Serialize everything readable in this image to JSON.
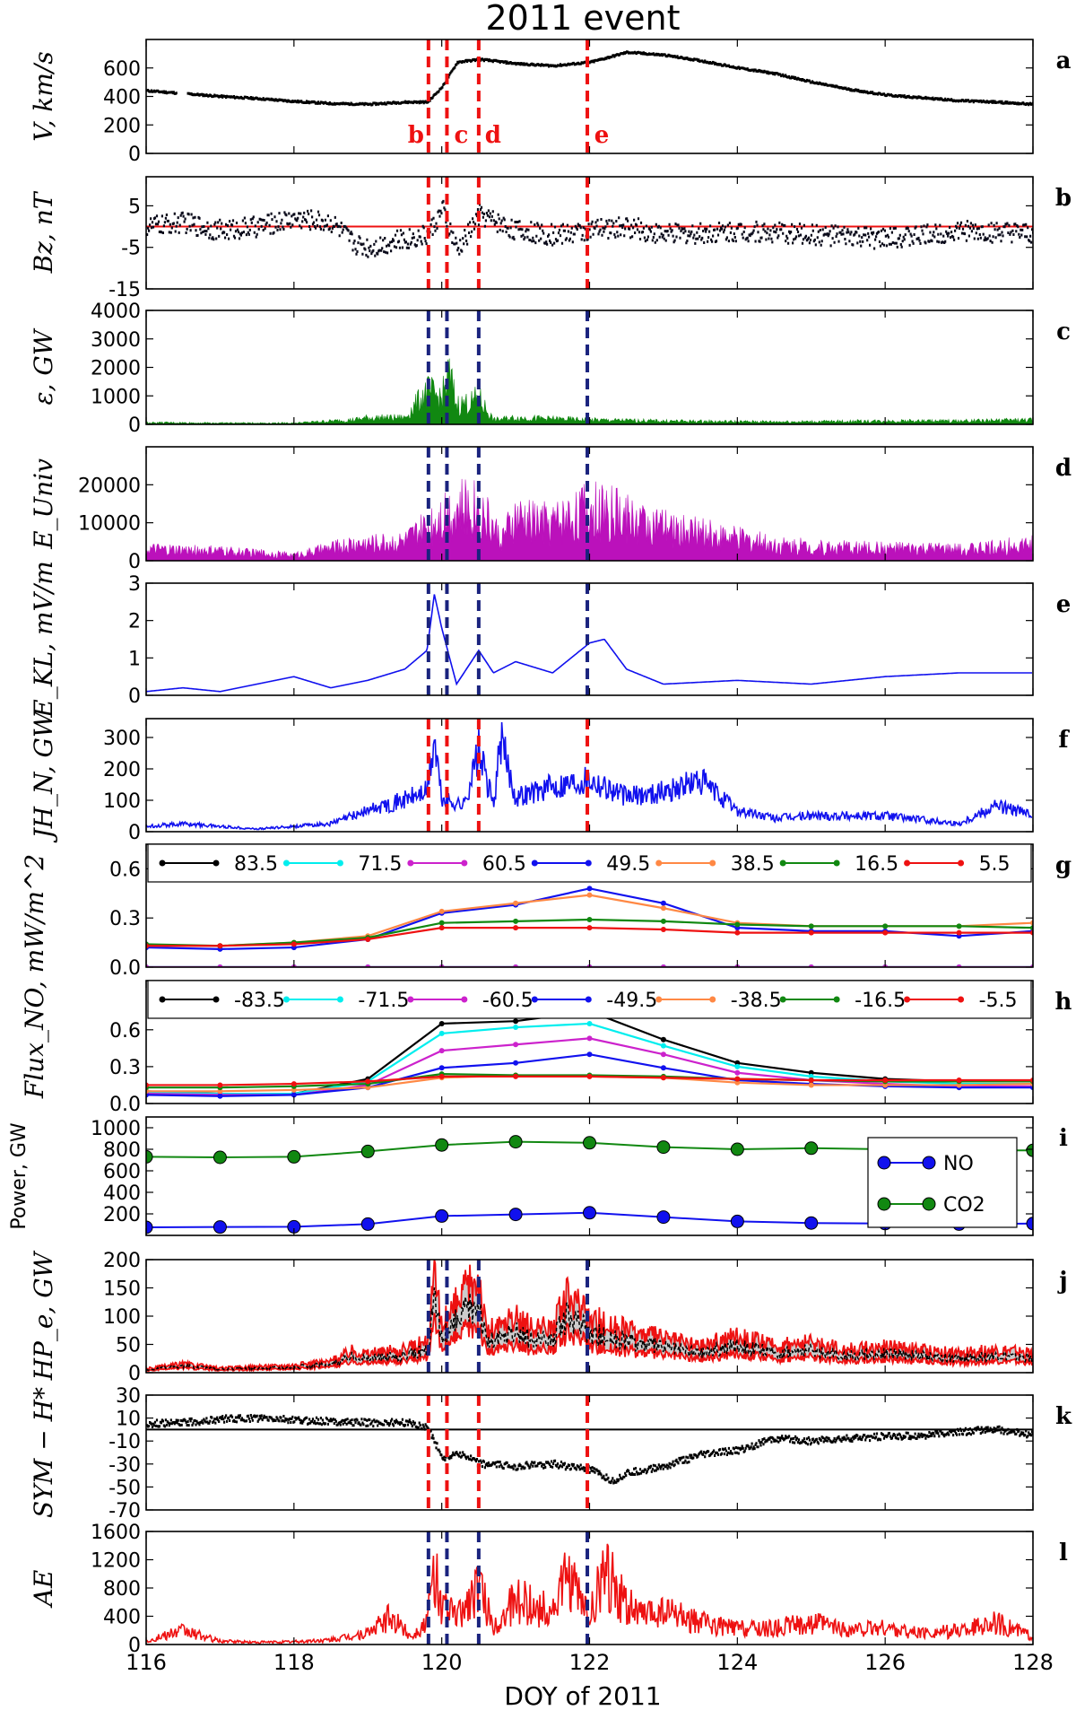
{
  "figure": {
    "title": "2011 event",
    "xlabel": "DOY of 2011",
    "x_range": [
      116,
      128
    ],
    "x_ticks": [
      116,
      118,
      120,
      122,
      124,
      126,
      128
    ],
    "event_lines": [
      119.82,
      120.07,
      120.5,
      121.97
    ],
    "event_labels": [
      "b",
      "c",
      "d",
      "e"
    ]
  },
  "chart_data": [
    {
      "type": "scatter",
      "panel": "a",
      "ylabel": "V, km/s",
      "ylim": [
        0,
        800
      ],
      "yticks": [
        0,
        200,
        400,
        600
      ],
      "color": "#000000",
      "vline_color": "#ee1111",
      "series": [
        {
          "name": "",
          "x": [
            116,
            116.5,
            117,
            117.5,
            118,
            118.5,
            119,
            119.5,
            119.8,
            120,
            120.2,
            120.5,
            121,
            121.5,
            122,
            122.5,
            123,
            123.5,
            124,
            124.5,
            125,
            125.5,
            126,
            126.5,
            127,
            127.5,
            128
          ],
          "y": [
            440,
            420,
            400,
            385,
            365,
            350,
            345,
            360,
            360,
            470,
            640,
            660,
            630,
            615,
            640,
            710,
            690,
            650,
            600,
            560,
            500,
            450,
            410,
            390,
            370,
            360,
            345
          ]
        }
      ]
    },
    {
      "type": "scatter",
      "panel": "b",
      "ylabel": "Bz, nT",
      "ylim": [
        -15,
        12
      ],
      "yticks": [
        -15,
        -5,
        5
      ],
      "ref_line": 0,
      "ref_color": "#ee1111",
      "color": "#0a0a1a",
      "vline_color": "#ee1111",
      "series": [
        {
          "name": "",
          "x": [
            116,
            116.5,
            117,
            117.5,
            118,
            118.5,
            118.8,
            119,
            119.5,
            119.8,
            120,
            120.2,
            120.5,
            121,
            121.5,
            122,
            122.5,
            123,
            124,
            125,
            126,
            127,
            128
          ],
          "y": [
            0,
            1,
            -1,
            0,
            2,
            1,
            -4,
            -5,
            -3,
            -2,
            4,
            -6,
            3,
            -1,
            -2,
            -1,
            0,
            -2,
            -1,
            -2,
            -3,
            -1,
            -2
          ]
        }
      ]
    },
    {
      "type": "area",
      "panel": "c",
      "ylabel": "ε, GW",
      "ylim": [
        0,
        4000
      ],
      "yticks": [
        0,
        1000,
        2000,
        3000,
        4000
      ],
      "color": "#118811",
      "vline_color": "#1a237e",
      "series": [
        {
          "name": "",
          "x": [
            116,
            117,
            118,
            118.8,
            119,
            119.5,
            119.8,
            120,
            120.1,
            120.2,
            120.4,
            120.5,
            120.7,
            121,
            122,
            123,
            124,
            125,
            126,
            127,
            128
          ],
          "y": [
            80,
            60,
            60,
            200,
            300,
            300,
            1500,
            1200,
            2300,
            900,
            1000,
            1200,
            200,
            300,
            200,
            150,
            120,
            120,
            150,
            150,
            200
          ]
        }
      ]
    },
    {
      "type": "area",
      "panel": "d",
      "ylabel": "E_Univ",
      "ylim": [
        0,
        30000
      ],
      "yticks": [
        0,
        10000,
        20000
      ],
      "color": "#bb11bb",
      "vline_color": "#1a237e",
      "series": [
        {
          "name": "",
          "x": [
            116,
            117,
            118,
            118.8,
            119.5,
            119.8,
            120,
            120.5,
            120.8,
            121,
            121.5,
            122,
            122.5,
            123,
            123.5,
            124,
            124.5,
            125,
            126,
            127,
            128
          ],
          "y": [
            4000,
            3500,
            2000,
            6000,
            7000,
            12000,
            18000,
            20000,
            8000,
            15000,
            14000,
            19000,
            16000,
            12000,
            10000,
            8000,
            6000,
            5000,
            4500,
            4000,
            6000
          ]
        }
      ]
    },
    {
      "type": "line",
      "panel": "e",
      "ylabel": "E_KL, mV/m",
      "ylim": [
        0,
        3
      ],
      "yticks": [
        0,
        1,
        2,
        3
      ],
      "color": "#1111ee",
      "vline_color": "#1a237e",
      "series": [
        {
          "name": "",
          "x": [
            116,
            116.5,
            117,
            117.5,
            118,
            118.5,
            119,
            119.5,
            119.8,
            119.9,
            120,
            120.2,
            120.5,
            120.7,
            121,
            121.5,
            122,
            122.2,
            122.5,
            123,
            124,
            125,
            126,
            127,
            128
          ],
          "y": [
            0.1,
            0.2,
            0.1,
            0.3,
            0.5,
            0.2,
            0.4,
            0.7,
            1.2,
            2.7,
            1.8,
            0.3,
            1.2,
            0.6,
            0.9,
            0.6,
            1.4,
            1.5,
            0.7,
            0.3,
            0.4,
            0.3,
            0.5,
            0.6,
            0.6
          ]
        }
      ]
    },
    {
      "type": "line",
      "panel": "f",
      "ylabel": "JH_N, GW",
      "ylim": [
        0,
        360
      ],
      "yticks": [
        0,
        100,
        200,
        300
      ],
      "color": "#1111ee",
      "vline_color": "#ee1111",
      "series": [
        {
          "name": "",
          "x": [
            116,
            116.5,
            117,
            117.5,
            118,
            118.5,
            119,
            119.5,
            119.8,
            119.9,
            120,
            120.3,
            120.5,
            120.7,
            120.8,
            121,
            121.5,
            122,
            122.5,
            123,
            123.5,
            124,
            124.5,
            125,
            126,
            127,
            127.5,
            128
          ],
          "y": [
            20,
            30,
            20,
            10,
            20,
            30,
            80,
            120,
            150,
            340,
            120,
            100,
            300,
            100,
            340,
            130,
            170,
            200,
            130,
            150,
            190,
            80,
            50,
            60,
            60,
            30,
            100,
            60
          ]
        }
      ]
    },
    {
      "type": "line",
      "panel": "g",
      "ylabel": "Flux_NO, mW/m^2",
      "ylim": [
        0,
        0.75
      ],
      "yticks": [
        0.0,
        0.3,
        0.6
      ],
      "x": [
        116,
        117,
        118,
        119,
        120,
        121,
        122,
        123,
        124,
        125,
        126,
        127,
        128
      ],
      "series": [
        {
          "name": "83.5",
          "color": "#000000",
          "values": [
            0,
            0,
            0,
            0,
            0,
            0,
            0,
            0,
            0,
            0,
            0,
            0,
            0
          ]
        },
        {
          "name": "71.5",
          "color": "#00eeee",
          "values": [
            0,
            0,
            0,
            0,
            0,
            0,
            0,
            0,
            0,
            0,
            0,
            0,
            0
          ]
        },
        {
          "name": "60.5",
          "color": "#cc22cc",
          "values": [
            0,
            0,
            0,
            0,
            0,
            0,
            0,
            0,
            0,
            0,
            0,
            0,
            0
          ]
        },
        {
          "name": "49.5",
          "color": "#1111ee",
          "values": [
            0.12,
            0.11,
            0.12,
            0.17,
            0.33,
            0.38,
            0.48,
            0.39,
            0.24,
            0.22,
            0.22,
            0.19,
            0.22
          ]
        },
        {
          "name": "38.5",
          "color": "#ff8844",
          "values": [
            0.13,
            0.13,
            0.15,
            0.19,
            0.34,
            0.39,
            0.44,
            0.36,
            0.27,
            0.25,
            0.25,
            0.25,
            0.27
          ]
        },
        {
          "name": "16.5",
          "color": "#118811",
          "values": [
            0.14,
            0.13,
            0.15,
            0.18,
            0.27,
            0.28,
            0.29,
            0.28,
            0.26,
            0.25,
            0.25,
            0.25,
            0.24
          ]
        },
        {
          "name": "5.5",
          "color": "#ee1111",
          "values": [
            0.13,
            0.13,
            0.14,
            0.17,
            0.24,
            0.24,
            0.24,
            0.23,
            0.21,
            0.21,
            0.21,
            0.21,
            0.21
          ]
        }
      ]
    },
    {
      "type": "line",
      "panel": "h",
      "ylabel": "",
      "ylim": [
        0,
        1.0
      ],
      "yticks": [
        0.0,
        0.3,
        0.6
      ],
      "x": [
        116,
        117,
        118,
        119,
        120,
        121,
        122,
        123,
        124,
        125,
        126,
        127,
        128
      ],
      "series": [
        {
          "name": "-83.5",
          "color": "#000000",
          "values": [
            0.1,
            0.08,
            0.08,
            0.2,
            0.65,
            0.67,
            0.75,
            0.52,
            0.33,
            0.25,
            0.2,
            0.18,
            0.18
          ]
        },
        {
          "name": "-71.5",
          "color": "#00eeee",
          "values": [
            0.09,
            0.08,
            0.08,
            0.18,
            0.57,
            0.62,
            0.65,
            0.47,
            0.3,
            0.22,
            0.18,
            0.16,
            0.16
          ]
        },
        {
          "name": "-60.5",
          "color": "#cc22cc",
          "values": [
            0.08,
            0.07,
            0.07,
            0.15,
            0.43,
            0.48,
            0.53,
            0.4,
            0.25,
            0.19,
            0.16,
            0.14,
            0.14
          ]
        },
        {
          "name": "-49.5",
          "color": "#1111ee",
          "values": [
            0.07,
            0.06,
            0.07,
            0.13,
            0.29,
            0.33,
            0.4,
            0.29,
            0.19,
            0.16,
            0.14,
            0.13,
            0.13
          ]
        },
        {
          "name": "-38.5",
          "color": "#ff8844",
          "values": [
            0.1,
            0.1,
            0.11,
            0.13,
            0.21,
            0.23,
            0.22,
            0.21,
            0.17,
            0.15,
            0.15,
            0.15,
            0.16
          ]
        },
        {
          "name": "-16.5",
          "color": "#118811",
          "values": [
            0.13,
            0.13,
            0.14,
            0.16,
            0.24,
            0.23,
            0.23,
            0.22,
            0.2,
            0.19,
            0.18,
            0.18,
            0.18
          ]
        },
        {
          "name": "-5.5",
          "color": "#ee1111",
          "values": [
            0.15,
            0.15,
            0.16,
            0.18,
            0.22,
            0.22,
            0.22,
            0.21,
            0.2,
            0.19,
            0.19,
            0.19,
            0.19
          ]
        }
      ]
    },
    {
      "type": "line",
      "panel": "i",
      "ylabel": "Power, GW",
      "ylim": [
        0,
        1100
      ],
      "yticks": [
        200,
        400,
        600,
        800,
        1000
      ],
      "x": [
        116,
        117,
        118,
        119,
        120,
        121,
        122,
        123,
        124,
        125,
        126,
        127,
        128
      ],
      "legend_position": "right",
      "series": [
        {
          "name": "NO",
          "color": "#1111ee",
          "values": [
            75,
            78,
            80,
            105,
            180,
            195,
            210,
            170,
            130,
            115,
            110,
            105,
            110
          ]
        },
        {
          "name": "CO2",
          "color": "#118811",
          "values": [
            730,
            725,
            730,
            780,
            840,
            870,
            860,
            820,
            800,
            810,
            800,
            790,
            790
          ]
        }
      ]
    },
    {
      "type": "area",
      "panel": "j",
      "ylabel": "HP_e, GW",
      "ylim": [
        0,
        200
      ],
      "yticks": [
        0,
        50,
        100,
        150,
        200
      ],
      "color": "#ee1111",
      "band_color": "#cccccc",
      "vline_color": "#1a237e",
      "series": [
        {
          "name": "",
          "x": [
            116,
            116.5,
            117,
            117.5,
            118,
            118.5,
            118.8,
            119,
            119.5,
            119.8,
            119.9,
            120,
            120.2,
            120.5,
            120.6,
            120.8,
            121,
            121.3,
            121.5,
            121.7,
            122,
            122.5,
            123,
            123.5,
            124,
            124.5,
            125,
            125.5,
            126,
            126.5,
            127,
            127.5,
            128
          ],
          "y": [
            5,
            12,
            6,
            8,
            10,
            15,
            30,
            25,
            30,
            40,
            120,
            60,
            90,
            130,
            55,
            60,
            70,
            55,
            60,
            100,
            70,
            55,
            45,
            35,
            50,
            35,
            40,
            30,
            35,
            30,
            25,
            30,
            25
          ]
        }
      ]
    },
    {
      "type": "scatter",
      "panel": "k",
      "ylabel": "SYM − H*",
      "ylim": [
        -70,
        30
      ],
      "yticks": [
        -70,
        -50,
        -30,
        -10,
        10,
        30
      ],
      "ref_line": 0,
      "ref_color": "#000000",
      "color": "#000000",
      "vline_color": "#ee1111",
      "series": [
        {
          "name": "",
          "x": [
            116,
            116.5,
            117,
            117.5,
            118,
            118.5,
            119,
            119.5,
            119.8,
            120,
            120.2,
            120.5,
            121,
            121.5,
            122,
            122.3,
            122.5,
            123,
            123.5,
            124,
            124.5,
            125,
            125.5,
            126,
            126.5,
            127,
            127.5,
            128
          ],
          "y": [
            5,
            6,
            9,
            10,
            8,
            7,
            6,
            6,
            2,
            -25,
            -20,
            -30,
            -32,
            -30,
            -35,
            -45,
            -38,
            -32,
            -22,
            -18,
            -8,
            -10,
            -8,
            -6,
            -5,
            -2,
            0,
            -5
          ]
        }
      ]
    },
    {
      "type": "line",
      "panel": "l",
      "ylabel": "AE",
      "ylim": [
        0,
        1600
      ],
      "yticks": [
        0,
        400,
        800,
        1200,
        1600
      ],
      "color": "#ee1111",
      "vline_color": "#1a237e",
      "series": [
        {
          "name": "",
          "x": [
            116,
            116.5,
            117,
            117.5,
            118,
            118.5,
            119,
            119.3,
            119.6,
            119.8,
            119.9,
            120,
            120.2,
            120.5,
            120.7,
            121,
            121.5,
            121.7,
            122,
            122.2,
            122.4,
            122.7,
            123,
            123.5,
            124,
            124.5,
            125,
            125.5,
            126,
            126.5,
            127,
            127.5,
            128
          ],
          "y": [
            60,
            250,
            60,
            40,
            50,
            80,
            200,
            500,
            150,
            400,
            1300,
            700,
            500,
            1050,
            300,
            800,
            600,
            1200,
            500,
            1350,
            900,
            500,
            600,
            400,
            300,
            300,
            400,
            250,
            300,
            200,
            250,
            400,
            150
          ]
        }
      ]
    }
  ]
}
